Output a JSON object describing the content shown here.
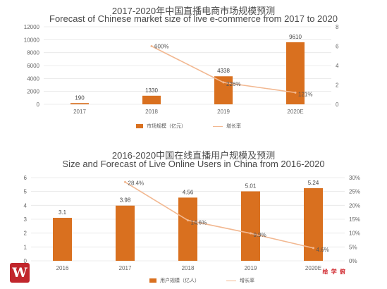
{
  "colors": {
    "bar": "#d9701f",
    "line": "#f2b891",
    "axis_text": "#666666",
    "grid": "#e6e6e6",
    "brand_red": "#c1262c"
  },
  "chart_data": [
    {
      "type": "bar",
      "title": "2017-2020年中国直播电商市场规模预测",
      "subtitle": "Forecast of Chinese market size of live e-commerce from 2017 to 2020",
      "categories": [
        "2017",
        "2018",
        "2019",
        "2020E"
      ],
      "series": [
        {
          "name": "市场规模（亿元）",
          "type": "bar",
          "axis": "left",
          "values": [
            190,
            1330,
            4338,
            9610
          ],
          "labels": [
            "190",
            "1330",
            "4338",
            "9610"
          ]
        },
        {
          "name": "增长率",
          "type": "line",
          "axis": "right",
          "values": [
            null,
            6.0,
            2.26,
            1.21
          ],
          "labels": [
            "",
            "600%",
            "226%",
            "121%"
          ]
        }
      ],
      "ylim": [
        0,
        12000
      ],
      "yticks": [
        "0",
        "2000",
        "4000",
        "6000",
        "8000",
        "10000",
        "12000"
      ],
      "y2lim": [
        0,
        8
      ],
      "y2ticks": [
        "0",
        "2",
        "4",
        "6",
        "8"
      ],
      "grid": true,
      "legend": "bottom-center"
    },
    {
      "type": "bar",
      "title": "2016-2020中国在线直播用户规模及预测",
      "subtitle": "Size and Forecast of Live Online Users in China from 2016-2020",
      "categories": [
        "2016",
        "2017",
        "2018",
        "2019",
        "2020E"
      ],
      "series": [
        {
          "name": "用户规模（亿人）",
          "type": "bar",
          "axis": "left",
          "values": [
            3.1,
            3.98,
            4.56,
            5.01,
            5.24
          ],
          "labels": [
            "3.1",
            "3.98",
            "4.56",
            "5.01",
            "5.24"
          ]
        },
        {
          "name": "增长率",
          "type": "line",
          "axis": "right",
          "values": [
            null,
            28.4,
            14.6,
            9.9,
            4.6
          ],
          "labels": [
            "",
            "28.4%",
            "14.6%",
            "9.9%",
            "4.6%"
          ]
        }
      ],
      "ylim": [
        0,
        6
      ],
      "yticks": [
        "0",
        "1",
        "2",
        "3",
        "4",
        "5",
        "6"
      ],
      "y2lim": [
        0,
        30
      ],
      "y2ticks": [
        "0%",
        "5%",
        "10%",
        "15%",
        "20%",
        "25%",
        "30%"
      ],
      "grid": true,
      "legend": "bottom-center"
    }
  ],
  "watermark": {
    "logo_icon": "book-logo-icon",
    "logo_text": "W",
    "text": "给 学 俯"
  }
}
